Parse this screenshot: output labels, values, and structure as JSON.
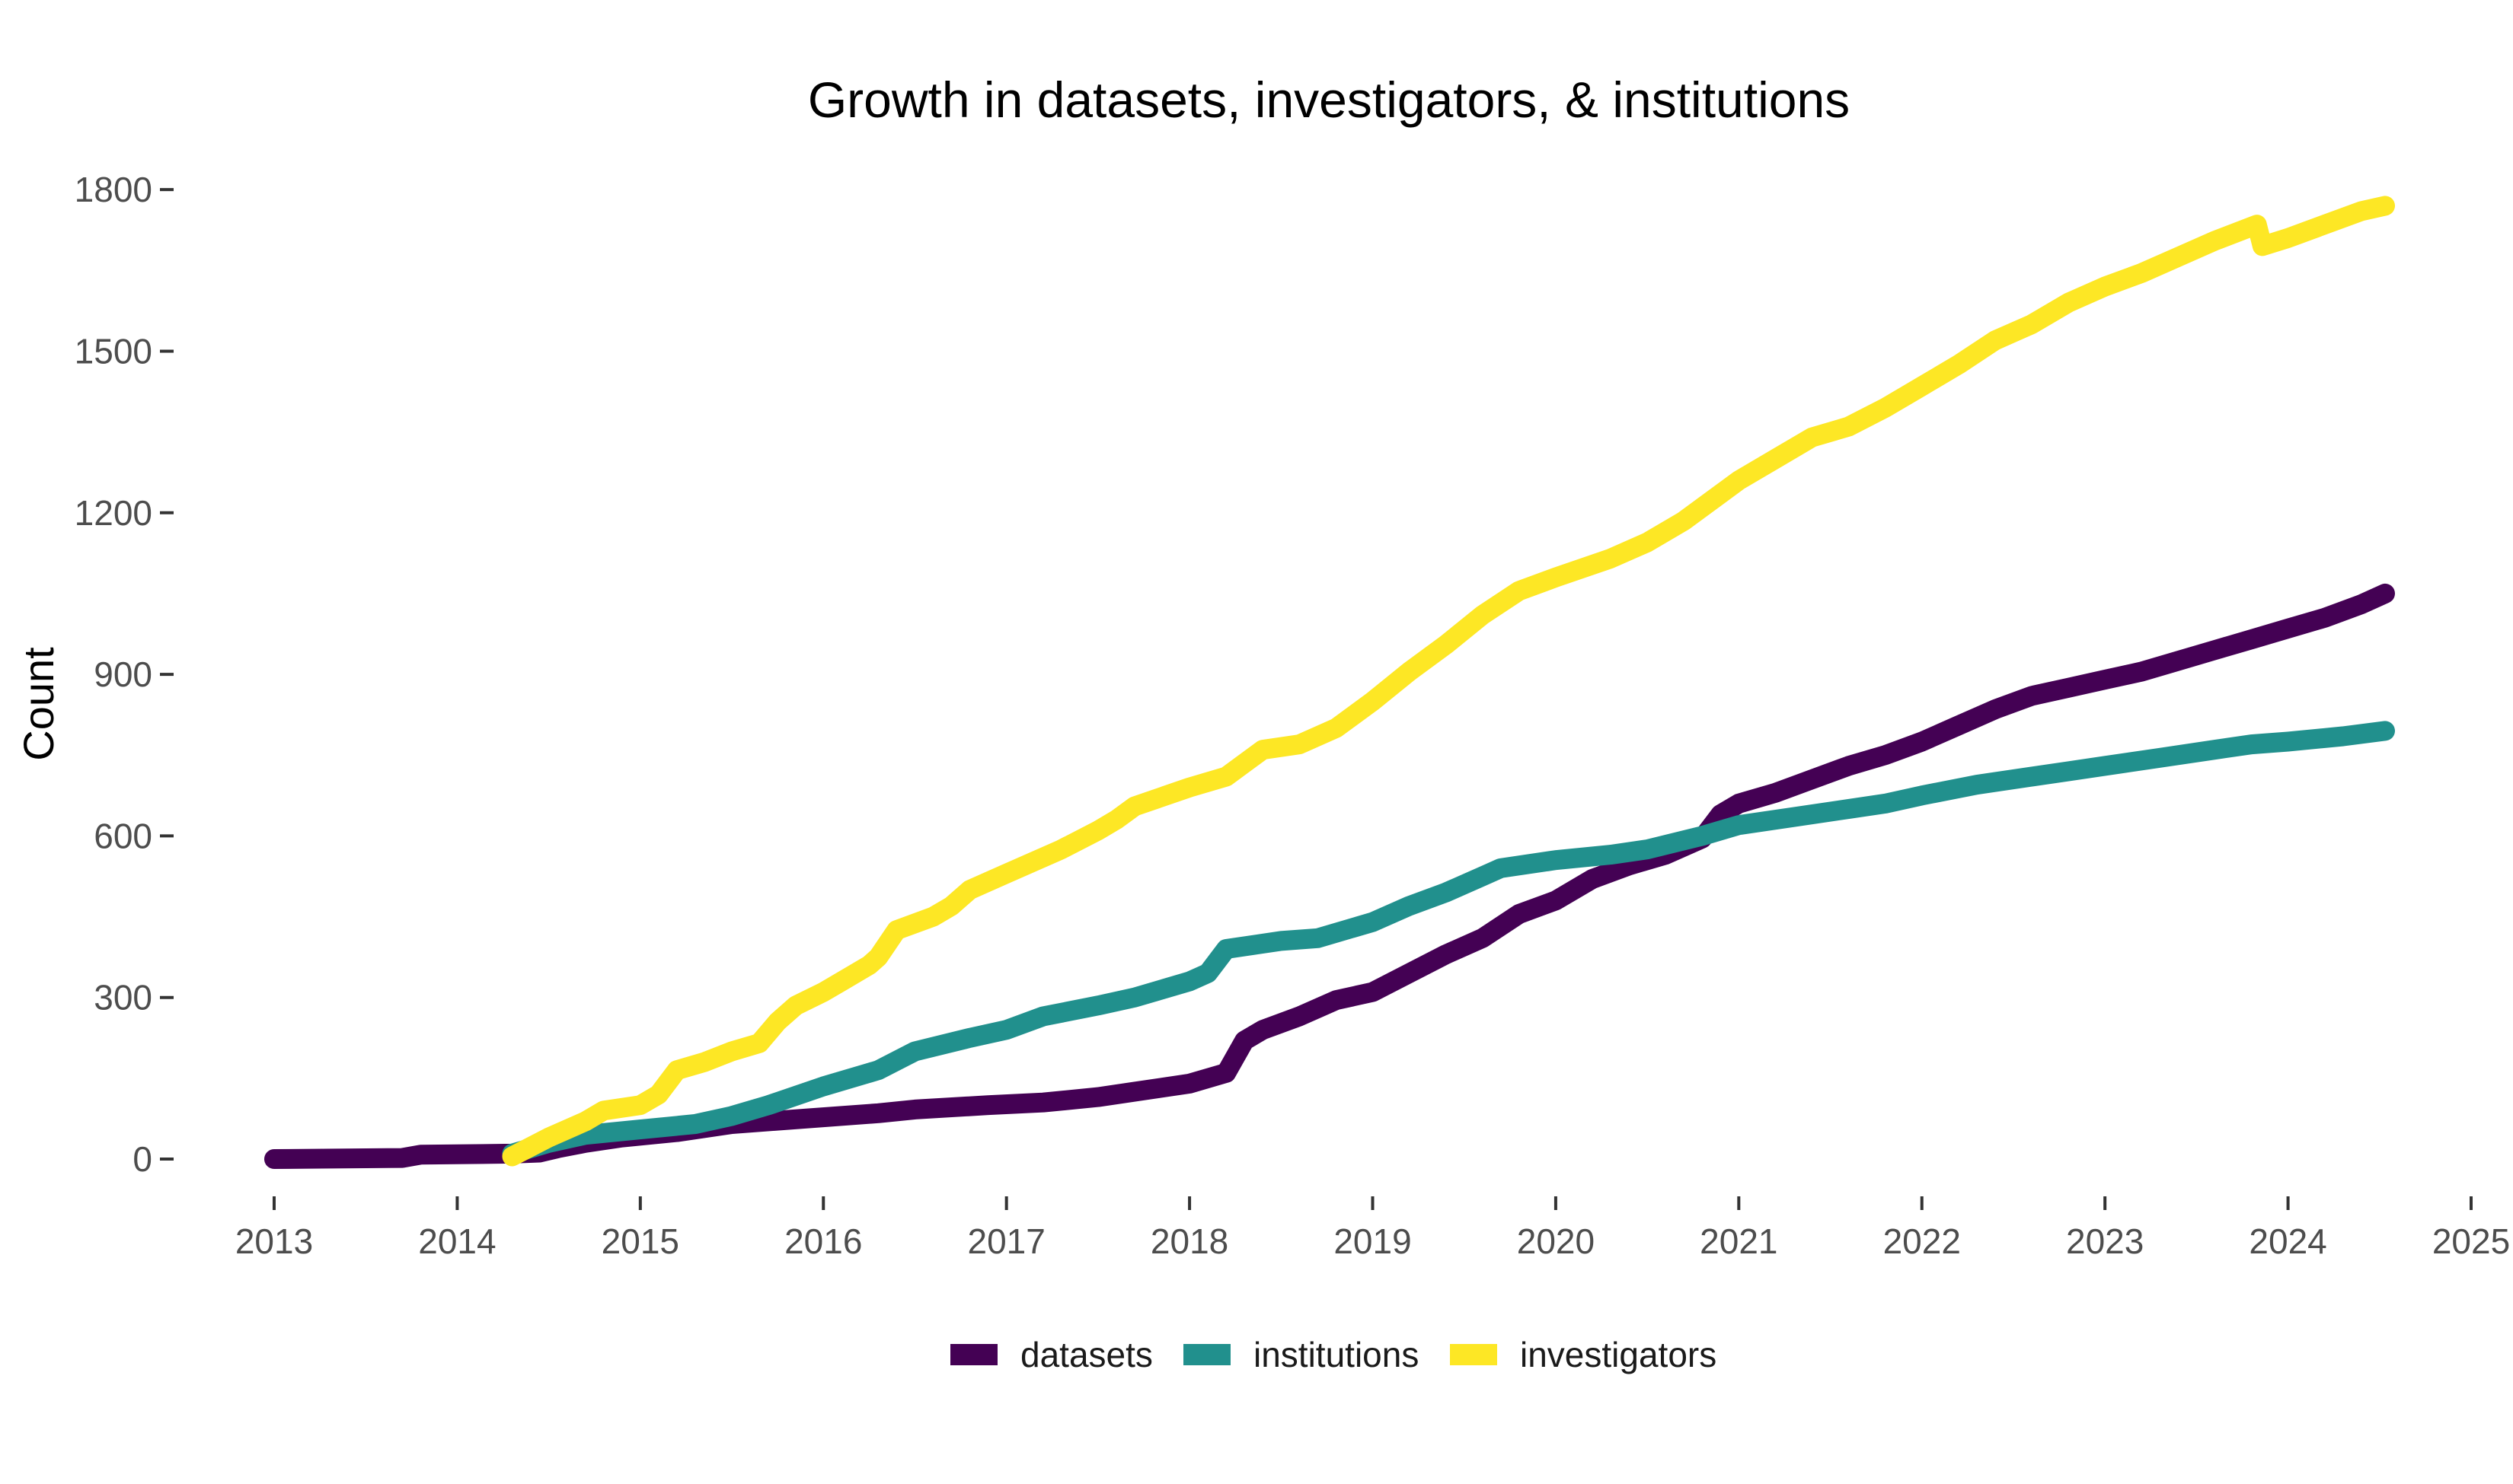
{
  "chart_data": {
    "type": "line",
    "title": "Growth in datasets, investigators, & institutions",
    "xlabel": "",
    "ylabel": "Count",
    "xlim": [
      2013,
      2025
    ],
    "ylim": [
      -50,
      1850
    ],
    "x_ticks": [
      "2013",
      "2014",
      "2015",
      "2016",
      "2017",
      "2018",
      "2019",
      "2020",
      "2021",
      "2022",
      "2023",
      "2024",
      "2025"
    ],
    "y_ticks": [
      0,
      300,
      600,
      900,
      1200,
      1500,
      1800
    ],
    "grid": false,
    "legend_position": "bottom",
    "series": [
      {
        "name": "datasets",
        "color": "#440154",
        "points": [
          [
            2013.0,
            0
          ],
          [
            2013.7,
            2
          ],
          [
            2013.8,
            8
          ],
          [
            2014.3,
            10
          ],
          [
            2014.45,
            12
          ],
          [
            2014.55,
            20
          ],
          [
            2014.7,
            30
          ],
          [
            2014.9,
            40
          ],
          [
            2015.2,
            50
          ],
          [
            2015.5,
            65
          ],
          [
            2015.9,
            75
          ],
          [
            2016.3,
            85
          ],
          [
            2016.5,
            92
          ],
          [
            2016.9,
            100
          ],
          [
            2017.2,
            105
          ],
          [
            2017.5,
            115
          ],
          [
            2017.7,
            125
          ],
          [
            2018.0,
            140
          ],
          [
            2018.2,
            160
          ],
          [
            2018.3,
            220
          ],
          [
            2018.4,
            240
          ],
          [
            2018.6,
            265
          ],
          [
            2018.8,
            295
          ],
          [
            2019.0,
            310
          ],
          [
            2019.2,
            345
          ],
          [
            2019.4,
            380
          ],
          [
            2019.6,
            410
          ],
          [
            2019.8,
            455
          ],
          [
            2020.0,
            480
          ],
          [
            2020.2,
            520
          ],
          [
            2020.4,
            545
          ],
          [
            2020.6,
            565
          ],
          [
            2020.8,
            595
          ],
          [
            2020.9,
            640
          ],
          [
            2021.0,
            660
          ],
          [
            2021.2,
            680
          ],
          [
            2021.4,
            705
          ],
          [
            2021.6,
            730
          ],
          [
            2021.8,
            750
          ],
          [
            2022.0,
            775
          ],
          [
            2022.2,
            805
          ],
          [
            2022.4,
            835
          ],
          [
            2022.6,
            860
          ],
          [
            2022.8,
            875
          ],
          [
            2023.0,
            890
          ],
          [
            2023.2,
            905
          ],
          [
            2023.4,
            925
          ],
          [
            2023.6,
            945
          ],
          [
            2023.8,
            965
          ],
          [
            2024.0,
            985
          ],
          [
            2024.2,
            1005
          ],
          [
            2024.4,
            1030
          ],
          [
            2024.53,
            1050
          ]
        ]
      },
      {
        "name": "institutions",
        "color": "#21908d",
        "points": [
          [
            2014.3,
            10
          ],
          [
            2014.5,
            30
          ],
          [
            2014.7,
            45
          ],
          [
            2015.0,
            55
          ],
          [
            2015.3,
            65
          ],
          [
            2015.5,
            80
          ],
          [
            2015.7,
            100
          ],
          [
            2016.0,
            135
          ],
          [
            2016.3,
            165
          ],
          [
            2016.5,
            200
          ],
          [
            2016.8,
            225
          ],
          [
            2017.0,
            240
          ],
          [
            2017.2,
            265
          ],
          [
            2017.5,
            285
          ],
          [
            2017.7,
            300
          ],
          [
            2018.0,
            330
          ],
          [
            2018.1,
            345
          ],
          [
            2018.2,
            390
          ],
          [
            2018.5,
            405
          ],
          [
            2018.7,
            410
          ],
          [
            2019.0,
            440
          ],
          [
            2019.2,
            470
          ],
          [
            2019.4,
            495
          ],
          [
            2019.6,
            525
          ],
          [
            2019.7,
            540
          ],
          [
            2020.0,
            555
          ],
          [
            2020.3,
            565
          ],
          [
            2020.5,
            575
          ],
          [
            2020.8,
            600
          ],
          [
            2021.0,
            620
          ],
          [
            2021.3,
            635
          ],
          [
            2021.6,
            650
          ],
          [
            2021.8,
            660
          ],
          [
            2022.0,
            675
          ],
          [
            2022.3,
            695
          ],
          [
            2022.6,
            710
          ],
          [
            2022.8,
            720
          ],
          [
            2023.0,
            730
          ],
          [
            2023.3,
            745
          ],
          [
            2023.6,
            760
          ],
          [
            2023.8,
            770
          ],
          [
            2024.0,
            775
          ],
          [
            2024.3,
            785
          ],
          [
            2024.53,
            795
          ]
        ]
      },
      {
        "name": "investigators",
        "color": "#fde725",
        "points": [
          [
            2014.3,
            5
          ],
          [
            2014.5,
            40
          ],
          [
            2014.7,
            70
          ],
          [
            2014.8,
            90
          ],
          [
            2015.0,
            100
          ],
          [
            2015.1,
            120
          ],
          [
            2015.2,
            165
          ],
          [
            2015.35,
            180
          ],
          [
            2015.5,
            200
          ],
          [
            2015.65,
            215
          ],
          [
            2015.75,
            255
          ],
          [
            2015.85,
            285
          ],
          [
            2016.0,
            310
          ],
          [
            2016.1,
            330
          ],
          [
            2016.25,
            360
          ],
          [
            2016.3,
            375
          ],
          [
            2016.4,
            425
          ],
          [
            2016.6,
            450
          ],
          [
            2016.7,
            470
          ],
          [
            2016.8,
            500
          ],
          [
            2017.0,
            530
          ],
          [
            2017.3,
            575
          ],
          [
            2017.5,
            610
          ],
          [
            2017.6,
            630
          ],
          [
            2017.7,
            655
          ],
          [
            2018.0,
            690
          ],
          [
            2018.2,
            710
          ],
          [
            2018.4,
            760
          ],
          [
            2018.6,
            770
          ],
          [
            2018.8,
            800
          ],
          [
            2019.0,
            850
          ],
          [
            2019.2,
            905
          ],
          [
            2019.4,
            955
          ],
          [
            2019.6,
            1010
          ],
          [
            2019.8,
            1055
          ],
          [
            2020.0,
            1080
          ],
          [
            2020.3,
            1115
          ],
          [
            2020.5,
            1145
          ],
          [
            2020.7,
            1185
          ],
          [
            2020.9,
            1235
          ],
          [
            2021.0,
            1260
          ],
          [
            2021.2,
            1300
          ],
          [
            2021.4,
            1340
          ],
          [
            2021.6,
            1360
          ],
          [
            2021.8,
            1395
          ],
          [
            2022.0,
            1435
          ],
          [
            2022.2,
            1475
          ],
          [
            2022.4,
            1520
          ],
          [
            2022.6,
            1550
          ],
          [
            2022.8,
            1590
          ],
          [
            2023.0,
            1620
          ],
          [
            2023.2,
            1645
          ],
          [
            2023.4,
            1675
          ],
          [
            2023.6,
            1705
          ],
          [
            2023.83,
            1735
          ],
          [
            2023.86,
            1695
          ],
          [
            2024.0,
            1710
          ],
          [
            2024.2,
            1735
          ],
          [
            2024.4,
            1760
          ],
          [
            2024.53,
            1770
          ]
        ]
      }
    ]
  }
}
